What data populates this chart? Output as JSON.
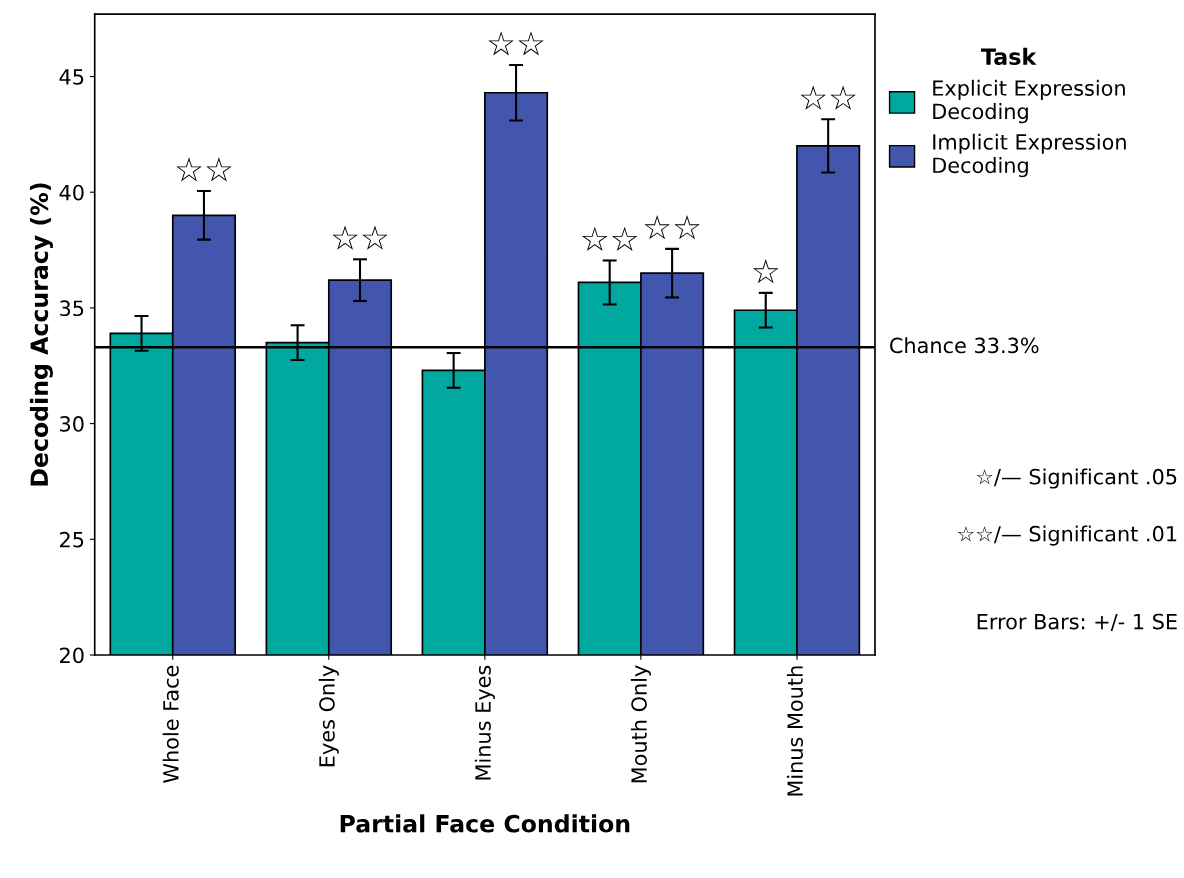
{
  "chart_data": {
    "type": "bar",
    "xlabel": "Partial Face Condition",
    "ylabel": "Decoding Accuracy (%)",
    "legend_title": "Task",
    "categories": [
      "Whole Face",
      "Eyes Only",
      "Minus Eyes",
      "Mouth Only",
      "Minus Mouth"
    ],
    "series": [
      {
        "name": "Explicit Expression Decoding",
        "color": "#00a8a0",
        "values": [
          33.9,
          33.5,
          32.3,
          36.1,
          34.9
        ],
        "errors": [
          0.75,
          0.75,
          0.75,
          0.95,
          0.75
        ],
        "value_labels": [
          null,
          null,
          null,
          "☆☆",
          "☆"
        ]
      },
      {
        "name": "Implicit Expression Decoding",
        "color": "#4156ac",
        "values": [
          39.0,
          36.2,
          44.3,
          36.5,
          42.0
        ],
        "errors": [
          1.05,
          0.9,
          1.2,
          1.05,
          1.15
        ],
        "value_labels": [
          "☆☆",
          "☆☆",
          "☆☆",
          "☆☆",
          "☆☆"
        ]
      }
    ],
    "ylim": [
      20,
      47.7
    ],
    "yticks": [
      20,
      25,
      30,
      35,
      40,
      45
    ],
    "grid": false,
    "legend": "top right",
    "ref_lines": [
      {
        "axis": "y",
        "value": 33.3,
        "label": "Chance 33.3%",
        "color": "#000000"
      }
    ],
    "annotations": [
      "☆/— Significant .05",
      "☆☆/— Significant .01",
      "Error Bars: +/- 1 SE"
    ]
  }
}
